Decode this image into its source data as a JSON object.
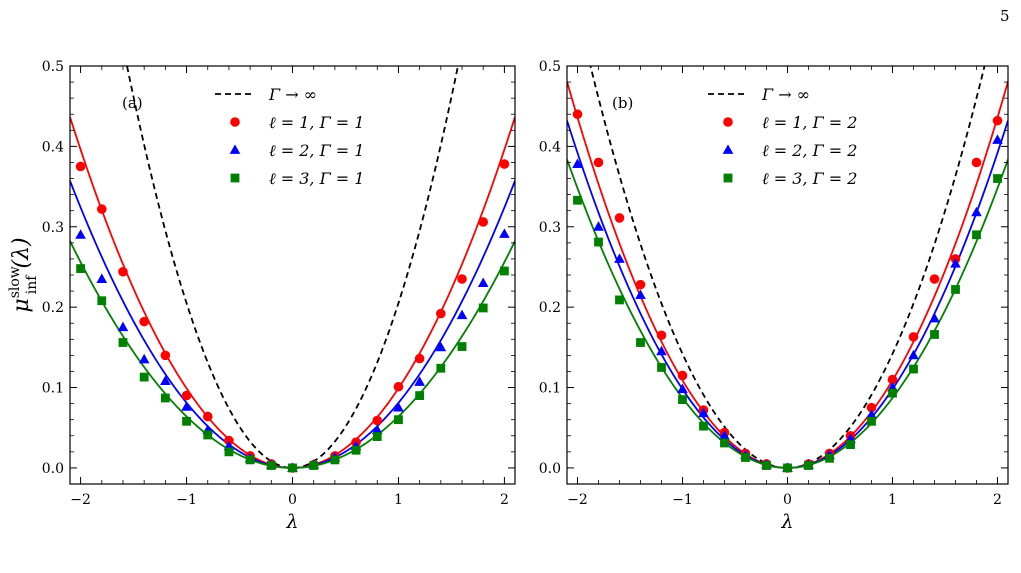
{
  "page_number": "5",
  "chart_data": [
    {
      "type": "scatter",
      "panel_label": "(a)",
      "xlabel": "λ",
      "ylabel": "μ_inf^slow(λ)",
      "ylabel_base": "μ",
      "ylabel_sup": "slow",
      "ylabel_sub": "inf",
      "ylabel_arg": "(λ)",
      "xlim": [
        -2.1,
        2.1
      ],
      "ylim": [
        -0.02,
        0.5
      ],
      "xticks": [
        -2,
        -1,
        0,
        1,
        2
      ],
      "xtick_labels": [
        "−2",
        "−1",
        "0",
        "1",
        "2"
      ],
      "yticks": [
        0.0,
        0.1,
        0.2,
        0.3,
        0.4,
        0.5
      ],
      "ytick_labels": [
        "0.0",
        "0.1",
        "0.2",
        "0.3",
        "0.4",
        "0.5"
      ],
      "legend_position": "top-right",
      "dashed_curve": {
        "label": "Γ → ∞",
        "color": "#000000",
        "coef": 0.205
      },
      "series": [
        {
          "name": "ℓ = 1, Γ = 1",
          "color": "#ff0000",
          "marker": "circle",
          "fit_coef": 0.099,
          "x": [
            -2.0,
            -1.8,
            -1.6,
            -1.4,
            -1.2,
            -1.0,
            -0.8,
            -0.6,
            -0.4,
            -0.2,
            0.0,
            0.2,
            0.4,
            0.6,
            0.8,
            1.0,
            1.2,
            1.4,
            1.6,
            1.8,
            2.0
          ],
          "y": [
            0.375,
            0.322,
            0.244,
            0.182,
            0.14,
            0.09,
            0.064,
            0.034,
            0.015,
            0.005,
            0.0,
            0.004,
            0.015,
            0.032,
            0.059,
            0.101,
            0.136,
            0.192,
            0.235,
            0.306,
            0.378
          ]
        },
        {
          "name": "ℓ = 2, Γ = 1",
          "color": "#0000ff",
          "marker": "triangle",
          "fit_coef": 0.081,
          "x": [
            -2.0,
            -1.8,
            -1.6,
            -1.4,
            -1.2,
            -1.0,
            -0.8,
            -0.6,
            -0.4,
            -0.2,
            0.0,
            0.2,
            0.4,
            0.6,
            0.8,
            1.0,
            1.2,
            1.4,
            1.6,
            1.8,
            2.0
          ],
          "y": [
            0.29,
            0.235,
            0.175,
            0.135,
            0.108,
            0.076,
            0.047,
            0.027,
            0.012,
            0.004,
            0.0,
            0.004,
            0.013,
            0.027,
            0.047,
            0.075,
            0.107,
            0.15,
            0.19,
            0.23,
            0.291
          ]
        },
        {
          "name": "ℓ = 3, Γ = 1",
          "color": "#008000",
          "marker": "square",
          "fit_coef": 0.064,
          "x": [
            -2.0,
            -1.8,
            -1.6,
            -1.4,
            -1.2,
            -1.0,
            -0.8,
            -0.6,
            -0.4,
            -0.2,
            0.0,
            0.2,
            0.4,
            0.6,
            0.8,
            1.0,
            1.2,
            1.4,
            1.6,
            1.8,
            2.0
          ],
          "y": [
            0.248,
            0.208,
            0.156,
            0.113,
            0.087,
            0.058,
            0.041,
            0.02,
            0.01,
            0.003,
            0.0,
            0.003,
            0.01,
            0.022,
            0.039,
            0.06,
            0.09,
            0.124,
            0.151,
            0.199,
            0.245
          ]
        }
      ]
    },
    {
      "type": "scatter",
      "panel_label": "(b)",
      "xlabel": "λ",
      "xlim": [
        -2.1,
        2.1
      ],
      "ylim": [
        -0.02,
        0.5
      ],
      "xticks": [
        -2,
        -1,
        0,
        1,
        2
      ],
      "xtick_labels": [
        "−2",
        "−1",
        "0",
        "1",
        "2"
      ],
      "yticks": [
        0.0,
        0.1,
        0.2,
        0.3,
        0.4,
        0.5
      ],
      "ytick_labels": [
        "0.0",
        "0.1",
        "0.2",
        "0.3",
        "0.4",
        "0.5"
      ],
      "legend_position": "top-right",
      "dashed_curve": {
        "label": "Γ → ∞",
        "color": "#000000",
        "coef": 0.142
      },
      "series": [
        {
          "name": "ℓ = 1, Γ = 2",
          "color": "#ff0000",
          "marker": "circle",
          "fit_coef": 0.109,
          "x": [
            -2.0,
            -1.8,
            -1.6,
            -1.4,
            -1.2,
            -1.0,
            -0.8,
            -0.6,
            -0.4,
            -0.2,
            0.0,
            0.2,
            0.4,
            0.6,
            0.8,
            1.0,
            1.2,
            1.4,
            1.6,
            1.8,
            2.0
          ],
          "y": [
            0.44,
            0.38,
            0.311,
            0.228,
            0.165,
            0.115,
            0.072,
            0.044,
            0.018,
            0.005,
            0.0,
            0.005,
            0.018,
            0.04,
            0.075,
            0.11,
            0.163,
            0.235,
            0.26,
            0.38,
            0.432
          ]
        },
        {
          "name": "ℓ = 2, Γ = 2",
          "color": "#0000ff",
          "marker": "triangle",
          "fit_coef": 0.098,
          "x": [
            -2.0,
            -1.8,
            -1.6,
            -1.4,
            -1.2,
            -1.0,
            -0.8,
            -0.6,
            -0.4,
            -0.2,
            0.0,
            0.2,
            0.4,
            0.6,
            0.8,
            1.0,
            1.2,
            1.4,
            1.6,
            1.8,
            2.0
          ],
          "y": [
            0.378,
            0.3,
            0.26,
            0.215,
            0.145,
            0.098,
            0.068,
            0.04,
            0.016,
            0.004,
            0.0,
            0.004,
            0.016,
            0.036,
            0.066,
            0.1,
            0.14,
            0.186,
            0.254,
            0.318,
            0.408
          ]
        },
        {
          "name": "ℓ = 3, Γ = 2",
          "color": "#008000",
          "marker": "square",
          "fit_coef": 0.087,
          "x": [
            -2.0,
            -1.8,
            -1.6,
            -1.4,
            -1.2,
            -1.0,
            -0.8,
            -0.6,
            -0.4,
            -0.2,
            0.0,
            0.2,
            0.4,
            0.6,
            0.8,
            1.0,
            1.2,
            1.4,
            1.6,
            1.8,
            2.0
          ],
          "y": [
            0.333,
            0.281,
            0.209,
            0.156,
            0.125,
            0.085,
            0.052,
            0.031,
            0.013,
            0.003,
            0.0,
            0.003,
            0.012,
            0.029,
            0.058,
            0.093,
            0.123,
            0.166,
            0.222,
            0.29,
            0.36
          ]
        }
      ]
    }
  ]
}
